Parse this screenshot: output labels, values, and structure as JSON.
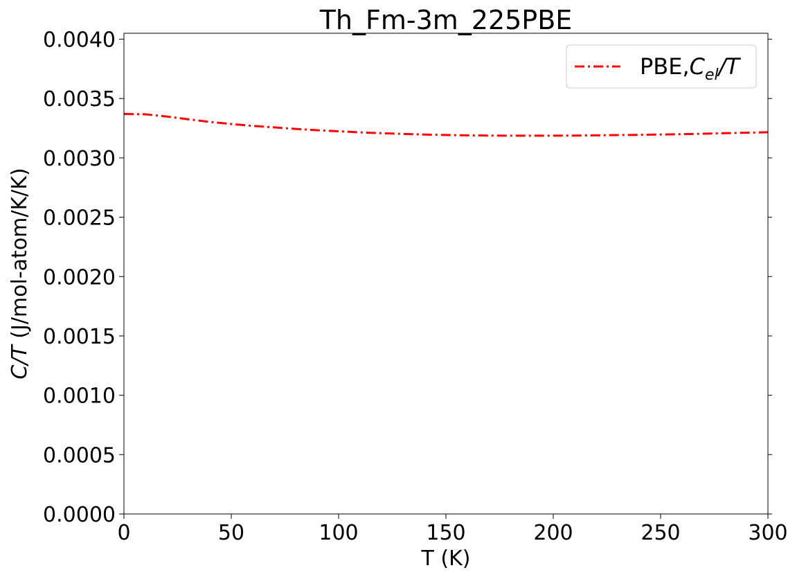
{
  "chart_data": {
    "type": "line",
    "title": "Th_Fm-3m_225PBE",
    "xlabel": "T (K)",
    "ylabel": {
      "symbol": "C/T",
      "units": " (J/mol-atom/K/K)"
    },
    "xlim": [
      0,
      300
    ],
    "ylim": [
      0,
      0.00405
    ],
    "xticks": [
      0,
      50,
      100,
      150,
      200,
      250,
      300
    ],
    "xtick_labels": [
      "0",
      "50",
      "100",
      "150",
      "200",
      "250",
      "300"
    ],
    "yticks": [
      0,
      0.0005,
      0.001,
      0.0015,
      0.002,
      0.0025,
      0.003,
      0.0035,
      0.004
    ],
    "ytick_labels": [
      "0.0000",
      "0.0005",
      "0.0010",
      "0.0015",
      "0.0020",
      "0.0025",
      "0.0030",
      "0.0035",
      "0.0040"
    ],
    "grid": false,
    "legend_position": "top-right",
    "series": [
      {
        "name": "PBE,C_el/T",
        "legend": {
          "prefix": "PBE,",
          "symbol": "C",
          "subscript": "el",
          "suffix": "/T"
        },
        "color": "#ff0000",
        "line_style": "dash-dot",
        "x": [
          0,
          10,
          20,
          30,
          40,
          50,
          60,
          70,
          80,
          90,
          100,
          110,
          120,
          130,
          140,
          150,
          160,
          170,
          180,
          190,
          200,
          210,
          220,
          230,
          240,
          250,
          260,
          270,
          280,
          290,
          300
        ],
        "y": [
          0.00337,
          0.003367,
          0.003348,
          0.003325,
          0.003303,
          0.003285,
          0.00327,
          0.003257,
          0.003244,
          0.003233,
          0.003224,
          0.003215,
          0.003208,
          0.003202,
          0.003197,
          0.003193,
          0.00319,
          0.003188,
          0.003187,
          0.003187,
          0.003187,
          0.003188,
          0.00319,
          0.003192,
          0.003194,
          0.003197,
          0.0032,
          0.003204,
          0.003208,
          0.003212,
          0.003216
        ]
      }
    ]
  }
}
